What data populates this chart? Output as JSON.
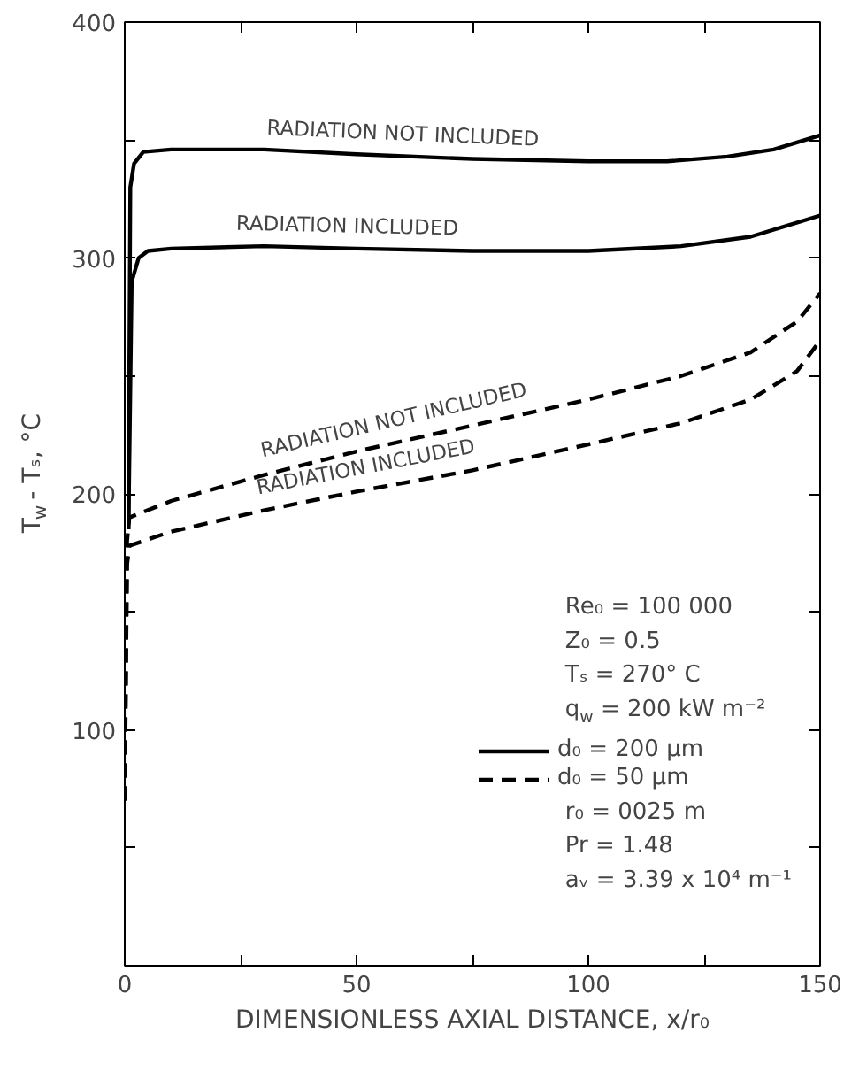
{
  "chart_data": {
    "type": "line",
    "xlabel": "DIMENSIONLESS AXIAL DISTANCE, x/r₀",
    "ylabel": "T$_{w}$ - Tₛ, °C",
    "xlim": [
      0,
      150
    ],
    "ylim": [
      0,
      400
    ],
    "xticks": [
      0,
      {
        "value": 25,
        "label": null
      },
      50,
      {
        "value": 75,
        "label": null
      },
      100,
      {
        "value": 125,
        "label": null
      },
      150
    ],
    "yticks": [
      {
        "value": 0,
        "label": null
      },
      {
        "value": 50,
        "label": null
      },
      100,
      {
        "value": 150,
        "label": null
      },
      200,
      {
        "value": 250,
        "label": null
      },
      300,
      {
        "value": 350,
        "label": null
      },
      400
    ],
    "grid": false,
    "legend": "bottom right",
    "series": [
      {
        "name": "d₀ = 200 μm",
        "color": "#000000",
        "line_style": "solid",
        "x": [
          0.8,
          1.2,
          2,
          4,
          10,
          30,
          50,
          75,
          100,
          117,
          130,
          140,
          150
        ],
        "values": [
          185,
          330,
          340,
          345,
          346,
          346,
          344,
          342,
          341,
          341,
          343,
          346,
          352
        ]
      },
      {
        "color": "#000000",
        "line_style": "solid",
        "x": [
          0.8,
          1.5,
          3,
          5,
          10,
          30,
          50,
          75,
          100,
          120,
          135,
          150
        ],
        "values": [
          185,
          290,
          300,
          303,
          304,
          305,
          304,
          303,
          303,
          305,
          309,
          318
        ]
      },
      {
        "name": "d₀ = 50 μm",
        "color": "#000000",
        "line_style": "dashed",
        "x": [
          0,
          0.5,
          1,
          10,
          30,
          50,
          75,
          100,
          120,
          135,
          145,
          150
        ],
        "values": [
          70,
          180,
          190,
          197,
          208,
          218,
          229,
          240,
          250,
          260,
          273,
          285
        ]
      },
      {
        "color": "#000000",
        "line_style": "dashed",
        "x": [
          0,
          0.5,
          1,
          10,
          30,
          50,
          75,
          100,
          120,
          135,
          145,
          150
        ],
        "values": [
          70,
          170,
          178,
          184,
          193,
          201,
          210,
          221,
          230,
          240,
          252,
          265
        ]
      }
    ],
    "annotations": [
      "RADIATION NOT INCLUDED",
      "RADIATION INCLUDED",
      "RADIATION NOT INCLUDED",
      "RADIATION INCLUDED",
      "Re₀ = 100 000",
      "Z₀ = 0.5",
      "Tₛ = 270° C",
      "q$_{w}$ = 200 kW m⁻²",
      "r₀ = 0025 m",
      "Pr = 1.48",
      "aᵥ = 3.39 x 10⁴ m⁻¹"
    ]
  }
}
